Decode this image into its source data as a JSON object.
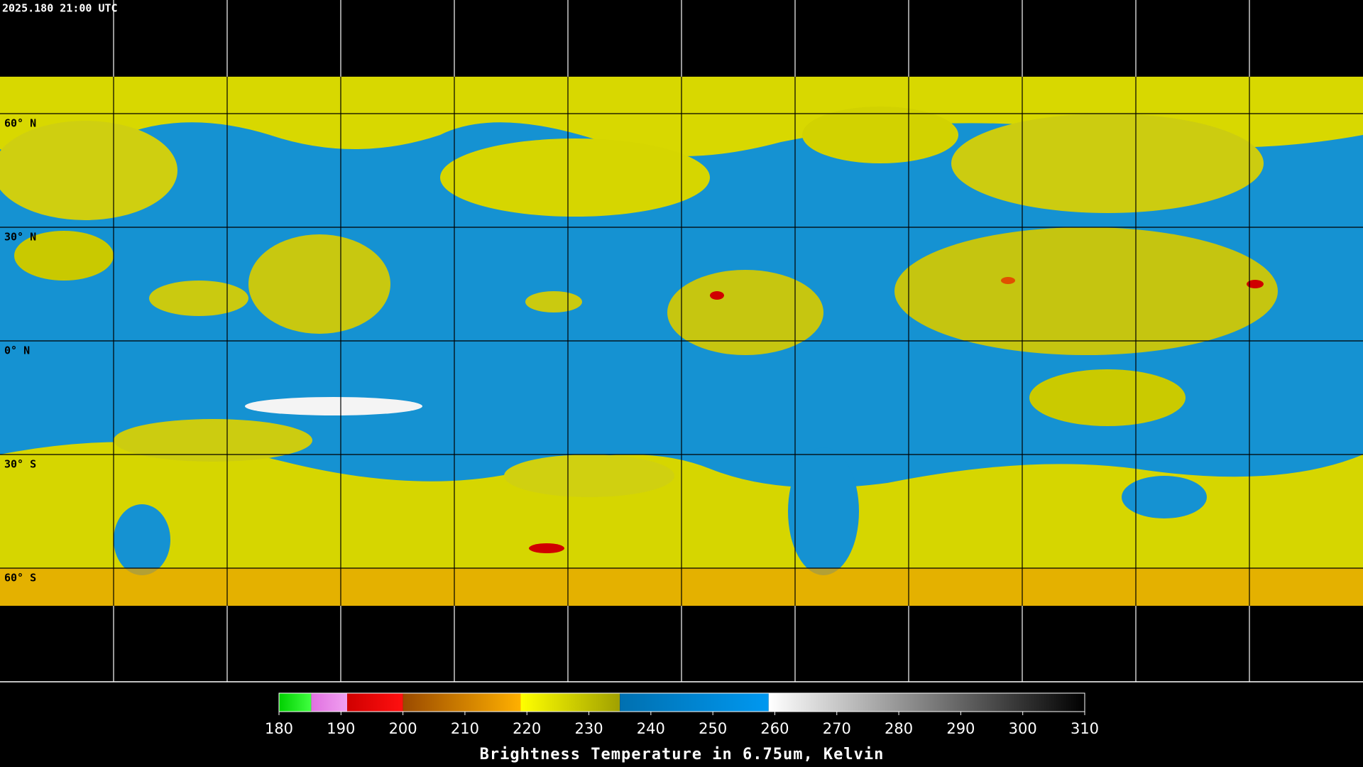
{
  "header": {
    "timestamp": "2025.180 21:00 UTC"
  },
  "map": {
    "latitudes": [
      {
        "value": 60,
        "label": "60° N"
      },
      {
        "value": 30,
        "label": "30° N"
      },
      {
        "value": 0,
        "label": "0° N"
      },
      {
        "value": -30,
        "label": "30° S"
      },
      {
        "value": -60,
        "label": "60° S"
      }
    ]
  },
  "colorbar": {
    "title": "Brightness Temperature in 6.75um, Kelvin",
    "range": [
      180,
      310
    ],
    "ticks": [
      180,
      190,
      200,
      210,
      220,
      230,
      240,
      250,
      260,
      270,
      280,
      290,
      300,
      310
    ],
    "segments": [
      {
        "from": 180,
        "to": 185.2,
        "colors": [
          "#00d000",
          "#40ff40"
        ]
      },
      {
        "from": 185.2,
        "to": 191,
        "colors": [
          "#e070e0",
          "#f0a0f0"
        ]
      },
      {
        "from": 191,
        "to": 200,
        "colors": [
          "#d00000",
          "#ff1010"
        ]
      },
      {
        "from": 200,
        "to": 219,
        "colors": [
          "#9a4a00",
          "#ffb000"
        ]
      },
      {
        "from": 219,
        "to": 235,
        "colors": [
          "#ffff00",
          "#a0a000"
        ]
      },
      {
        "from": 235,
        "to": 259,
        "colors": [
          "#0070b0",
          "#0098f0"
        ]
      },
      {
        "from": 259,
        "to": 310,
        "colors": [
          "#ffffff",
          "#000000"
        ]
      }
    ]
  }
}
